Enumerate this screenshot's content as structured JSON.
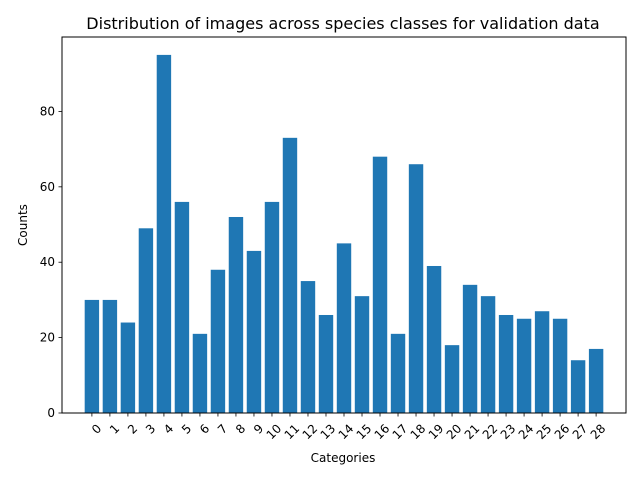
{
  "chart_data": {
    "type": "bar",
    "title": "Distribution of images across species classes for validation data",
    "xlabel": "Categories",
    "ylabel": "Counts",
    "categories": [
      "0",
      "1",
      "2",
      "3",
      "4",
      "5",
      "6",
      "7",
      "8",
      "9",
      "10",
      "11",
      "12",
      "13",
      "14",
      "15",
      "16",
      "17",
      "18",
      "19",
      "20",
      "21",
      "22",
      "23",
      "24",
      "25",
      "26",
      "27",
      "28"
    ],
    "values": [
      30,
      30,
      24,
      49,
      95,
      56,
      21,
      38,
      52,
      43,
      56,
      73,
      35,
      26,
      45,
      31,
      68,
      21,
      66,
      39,
      18,
      34,
      31,
      26,
      25,
      27,
      25,
      14,
      17
    ],
    "ylim": [
      0,
      99.75
    ],
    "yticks": [
      0,
      20,
      40,
      60,
      80
    ],
    "grid": false,
    "bar_color": "#1f77b4"
  }
}
